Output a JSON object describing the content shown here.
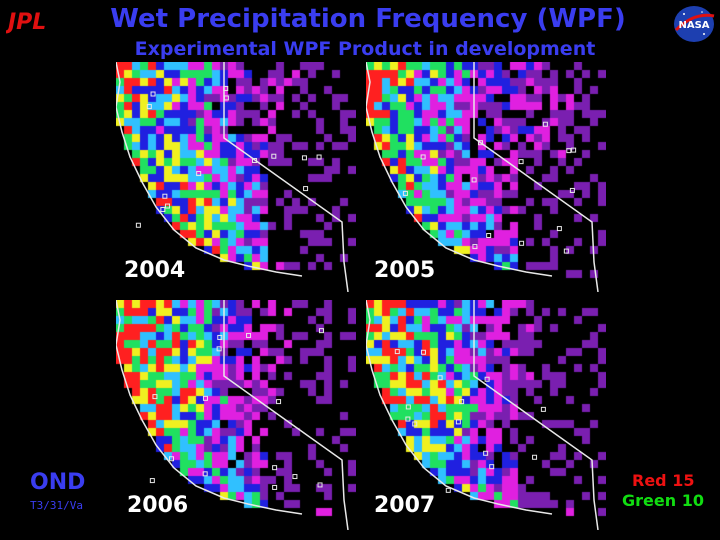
{
  "header": {
    "title": "Wet Precipitation Frequency (WPF)",
    "subtitle": "Experimental WPF Product in development",
    "left_logo": "JPL",
    "right_logo": "NASA"
  },
  "panels": [
    {
      "year": "2004",
      "hot_lat": 0.55,
      "hot_lon": 0.45
    },
    {
      "year": "2005",
      "hot_lat": 0.2,
      "hot_lon": 0.78
    },
    {
      "year": "2006",
      "hot_lat": 0.3,
      "hot_lon": 0.22
    },
    {
      "year": "2007",
      "hot_lat": 0.38,
      "hot_lon": 0.3
    }
  ],
  "footer": {
    "season": "OND",
    "code": "T3/31/Va",
    "legend_red": "Red 15",
    "legend_green": "Green 10"
  },
  "colors": {
    "title": "#3a3df0",
    "palette": [
      "#000000",
      "#7a1fb0",
      "#e020e0",
      "#2020e0",
      "#30c0ff",
      "#20e060",
      "#f0f020",
      "#ff2020"
    ]
  }
}
